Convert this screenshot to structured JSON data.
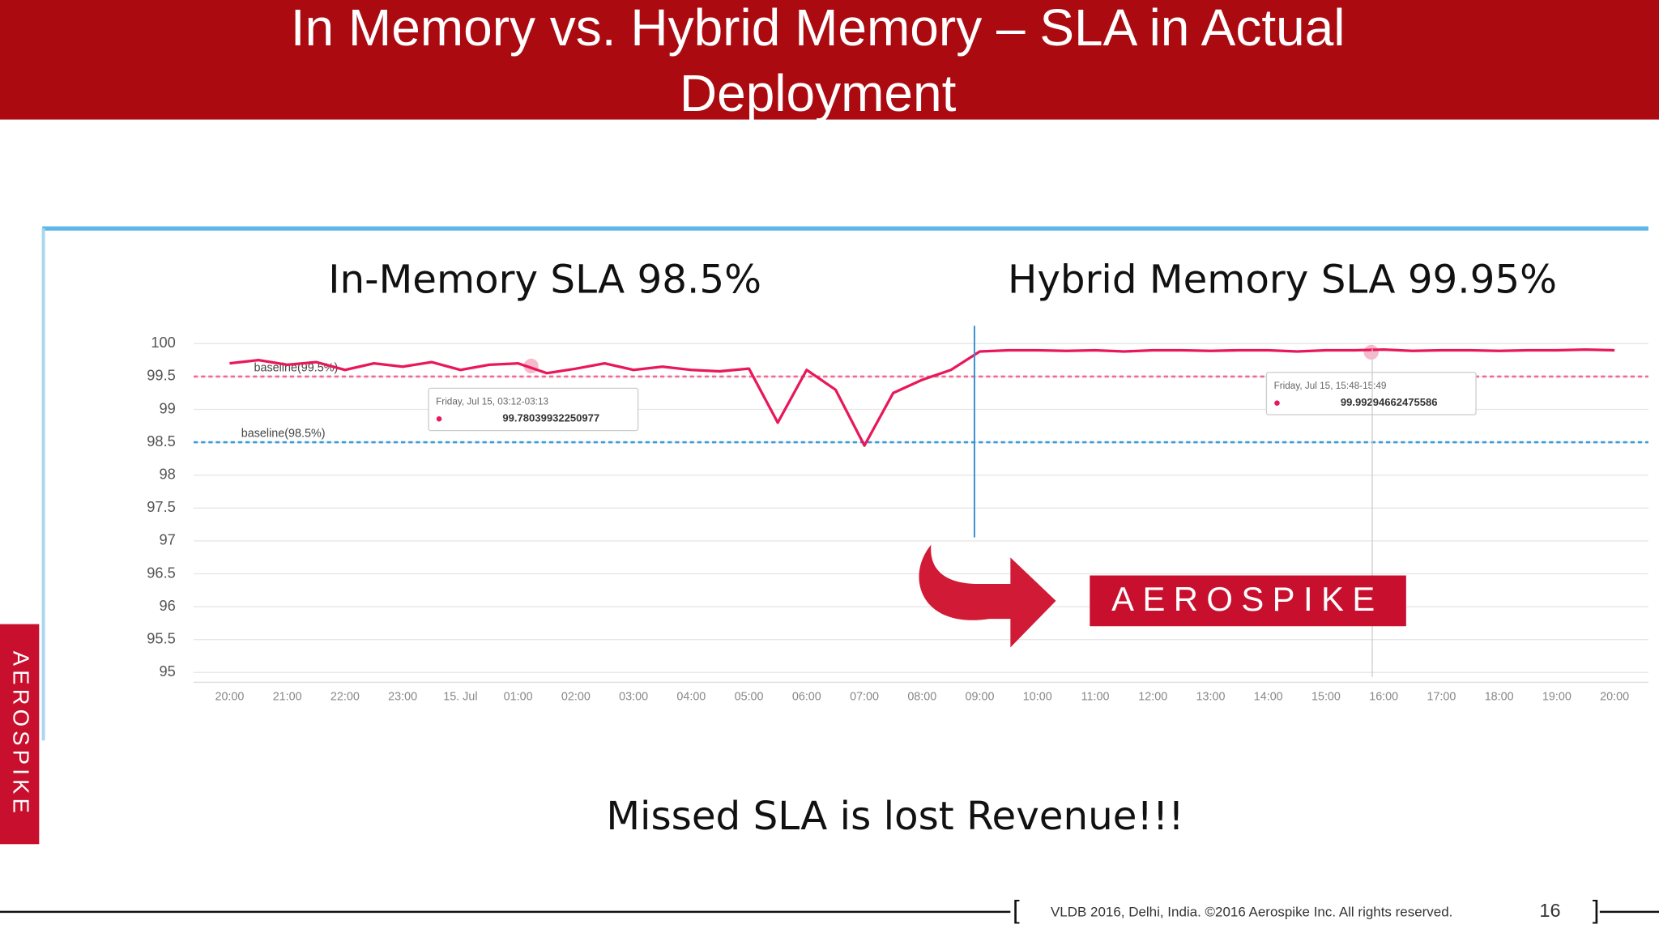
{
  "slide": {
    "title_line1": "In Memory vs. Hybrid Memory – SLA in Actual",
    "title_line2": "Deployment",
    "caption": "Missed SLA is lost Revenue!!!",
    "logo_text": "AEROSPIKE",
    "side_logo_text": "AEROSPIKE",
    "footer": "VLDB 2016, Delhi, India. ©2016 Aerospike Inc. All rights reserved.",
    "page_number": "16"
  },
  "chart_data": {
    "type": "line",
    "annotations": [
      "In-Memory SLA 98.5%",
      "Hybrid Memory SLA 99.95%"
    ],
    "categories": [
      "20:00",
      null,
      "21:00",
      null,
      "22:00",
      null,
      "23:00",
      null,
      "15. Jul",
      null,
      "01:00",
      null,
      "02:00",
      null,
      "03:00",
      null,
      "04:00",
      null,
      "05:00",
      null,
      "06:00",
      null,
      "07:00",
      null,
      "08:00",
      null,
      "09:00",
      null,
      "10:00",
      null,
      "11:00",
      null,
      "12:00",
      null,
      "13:00",
      null,
      "14:00",
      null,
      "15:00",
      null,
      "16:00",
      null,
      "17:00",
      null,
      "18:00",
      null,
      "19:00",
      null,
      "20:00"
    ],
    "values": [
      99.7,
      99.75,
      99.68,
      99.72,
      99.6,
      99.7,
      99.65,
      99.72,
      99.6,
      99.68,
      99.7,
      99.55,
      99.62,
      99.7,
      99.6,
      99.65,
      99.6,
      99.58,
      99.62,
      98.8,
      99.6,
      99.3,
      98.45,
      99.25,
      99.45,
      99.6,
      99.88,
      99.9,
      99.9,
      99.89,
      99.9,
      99.88,
      99.9,
      99.9,
      99.89,
      99.9,
      99.9,
      99.88,
      99.9,
      99.9,
      99.91,
      99.89,
      99.9,
      99.9,
      99.89,
      99.9,
      99.9,
      99.91,
      99.9
    ],
    "color": "#e8185a",
    "ylim": [
      94.85,
      100.4
    ],
    "yticks": [
      95,
      95.5,
      96,
      96.5,
      97,
      97.5,
      98,
      98.5,
      99,
      99.5,
      100
    ],
    "grid": true,
    "reference_lines": [
      {
        "label": "baseline(99.5%)",
        "value": 99.5,
        "color": "#f06a95"
      },
      {
        "label": "baseline(98.5%)",
        "value": 98.5,
        "color": "#3a9ad9"
      }
    ],
    "tooltips": [
      {
        "title": "Friday, Jul 15, 03:12-03:13",
        "value": 99.78039932250977
      },
      {
        "title": "Friday, Jul 15, 15:48-15:49",
        "value": 99.99294662475586
      }
    ]
  }
}
